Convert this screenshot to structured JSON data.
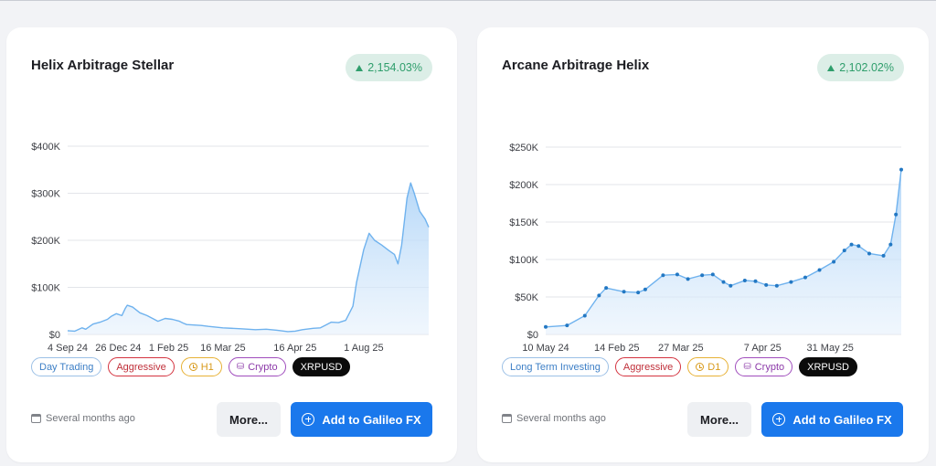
{
  "cards": [
    {
      "title": "Helix Arbitrage Stellar",
      "performance": "2,154.03%",
      "tags": {
        "style": "Day Trading",
        "risk": "Aggressive",
        "timeframe": "H1",
        "asset": "Crypto",
        "symbol": "XRPUSD"
      },
      "updated": "Several months ago",
      "more_label": "More...",
      "add_label": "Add to Galileo FX"
    },
    {
      "title": "Arcane Arbitrage Helix",
      "performance": "2,102.02%",
      "tags": {
        "style": "Long Term Investing",
        "risk": "Aggressive",
        "timeframe": "D1",
        "asset": "Crypto",
        "symbol": "XRPUSD"
      },
      "updated": "Several months ago",
      "more_label": "More...",
      "add_label": "Add to Galileo FX"
    }
  ],
  "colors": {
    "accent": "#1a78ec",
    "positive": "#2f9e6c",
    "line": "#8ec3f2",
    "fill": "#d9ebfb"
  },
  "icons": {
    "performance": "triangle-up-icon",
    "timeframe": "clock-icon",
    "asset": "coins-icon",
    "updated": "calendar-icon",
    "add": "plus-circle-icon"
  },
  "chart_data": [
    {
      "type": "area",
      "ylabel": "",
      "xlabel": "",
      "ylim": [
        0,
        400000
      ],
      "yticks": [
        0,
        100000,
        200000,
        300000,
        400000
      ],
      "ytick_labels": [
        "$0",
        "$100K",
        "$200K",
        "$300K",
        "$400K"
      ],
      "xtick_labels": [
        "4 Sep 24",
        "26 Dec 24",
        "1 Feb 25",
        "16 Mar 25",
        "16 Apr 25",
        "1 Aug 25"
      ],
      "xtick_pos": [
        0,
        0.14,
        0.28,
        0.43,
        0.63,
        0.82
      ],
      "markers": false,
      "points": [
        [
          0,
          8000
        ],
        [
          0.02,
          7000
        ],
        [
          0.04,
          14000
        ],
        [
          0.05,
          11000
        ],
        [
          0.07,
          22000
        ],
        [
          0.09,
          26000
        ],
        [
          0.11,
          32000
        ],
        [
          0.12,
          38000
        ],
        [
          0.135,
          44000
        ],
        [
          0.15,
          40000
        ],
        [
          0.16,
          56000
        ],
        [
          0.165,
          62000
        ],
        [
          0.18,
          58000
        ],
        [
          0.2,
          46000
        ],
        [
          0.22,
          40000
        ],
        [
          0.24,
          32000
        ],
        [
          0.25,
          28000
        ],
        [
          0.27,
          34000
        ],
        [
          0.29,
          32000
        ],
        [
          0.31,
          28000
        ],
        [
          0.32,
          24000
        ],
        [
          0.33,
          21000
        ],
        [
          0.35,
          20000
        ],
        [
          0.37,
          19000
        ],
        [
          0.39,
          17000
        ],
        [
          0.43,
          14000
        ],
        [
          0.48,
          12000
        ],
        [
          0.52,
          10000
        ],
        [
          0.55,
          11000
        ],
        [
          0.58,
          9000
        ],
        [
          0.61,
          6000
        ],
        [
          0.63,
          7000
        ],
        [
          0.65,
          10000
        ],
        [
          0.68,
          13000
        ],
        [
          0.7,
          14000
        ],
        [
          0.715,
          20000
        ],
        [
          0.73,
          26000
        ],
        [
          0.75,
          25000
        ],
        [
          0.77,
          30000
        ],
        [
          0.79,
          60000
        ],
        [
          0.8,
          110000
        ],
        [
          0.82,
          180000
        ],
        [
          0.835,
          215000
        ],
        [
          0.85,
          200000
        ],
        [
          0.87,
          190000
        ],
        [
          0.89,
          178000
        ],
        [
          0.905,
          170000
        ],
        [
          0.915,
          150000
        ],
        [
          0.925,
          190000
        ],
        [
          0.94,
          290000
        ],
        [
          0.95,
          322000
        ],
        [
          0.96,
          300000
        ],
        [
          0.975,
          262000
        ],
        [
          0.99,
          245000
        ],
        [
          1.0,
          228000
        ]
      ]
    },
    {
      "type": "area",
      "ylabel": "",
      "xlabel": "",
      "ylim": [
        0,
        250000
      ],
      "yticks": [
        0,
        50000,
        100000,
        150000,
        200000,
        250000
      ],
      "ytick_labels": [
        "$0",
        "$50K",
        "$100K",
        "$150K",
        "$200K",
        "$250K"
      ],
      "xtick_labels": [
        "10 May 24",
        "14 Feb 25",
        "27 Mar 25",
        "7 Apr 25",
        "31 May 25"
      ],
      "xtick_pos": [
        0,
        0.2,
        0.38,
        0.61,
        0.8
      ],
      "markers": true,
      "points": [
        [
          0,
          10000
        ],
        [
          0.06,
          12000
        ],
        [
          0.11,
          25000
        ],
        [
          0.15,
          52000
        ],
        [
          0.17,
          62000
        ],
        [
          0.22,
          57000
        ],
        [
          0.26,
          56000
        ],
        [
          0.28,
          60000
        ],
        [
          0.33,
          79000
        ],
        [
          0.37,
          80000
        ],
        [
          0.4,
          74000
        ],
        [
          0.44,
          79000
        ],
        [
          0.47,
          80000
        ],
        [
          0.5,
          70000
        ],
        [
          0.52,
          65000
        ],
        [
          0.56,
          72000
        ],
        [
          0.59,
          71000
        ],
        [
          0.62,
          66000
        ],
        [
          0.65,
          65000
        ],
        [
          0.69,
          70000
        ],
        [
          0.73,
          76000
        ],
        [
          0.77,
          86000
        ],
        [
          0.81,
          97000
        ],
        [
          0.84,
          112000
        ],
        [
          0.86,
          120000
        ],
        [
          0.88,
          118000
        ],
        [
          0.91,
          108000
        ],
        [
          0.95,
          105000
        ],
        [
          0.97,
          120000
        ],
        [
          0.985,
          160000
        ],
        [
          1.0,
          220000
        ]
      ]
    }
  ]
}
